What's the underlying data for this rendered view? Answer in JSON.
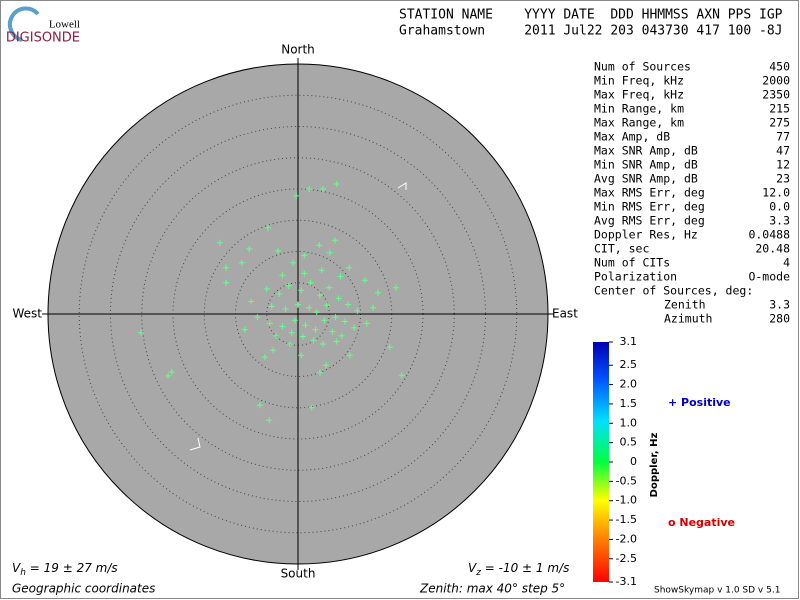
{
  "header": {
    "logo_top": "Lowell",
    "logo_main": "DIGISONDE",
    "line1": "STATION NAME    YYYY DATE  DDD HHMMSS AXN PPS IGP",
    "line2": "Grahamstown     2011 Jul22 203 043730 417 100 -8J"
  },
  "stats": {
    "rows": [
      [
        "Num of Sources",
        "450"
      ],
      [
        "Min Freq, kHz",
        "2000"
      ],
      [
        "Max Freq, kHz",
        "2350"
      ],
      [
        "Min Range, km",
        "215"
      ],
      [
        "Max Range, km",
        "275"
      ],
      [
        "Max Amp, dB",
        "77"
      ],
      [
        "Max SNR Amp, dB",
        "47"
      ],
      [
        "Min SNR Amp, dB",
        "12"
      ],
      [
        "Avg SNR Amp, dB",
        "23"
      ],
      [
        "Max RMS Err, deg",
        "12.0"
      ],
      [
        "Min RMS Err, deg",
        "0.0"
      ],
      [
        "Avg RMS Err, deg",
        "3.3"
      ],
      [
        "Doppler Res, Hz",
        "0.0488"
      ],
      [
        "CIT, sec",
        "20.48"
      ],
      [
        "Num of CITs",
        "4"
      ],
      [
        "Polarization",
        "O-mode"
      ]
    ],
    "center_title": "Center of Sources, deg:",
    "center_rows": [
      [
        "Zenith",
        "3.3"
      ],
      [
        "Azimuth",
        "280"
      ]
    ]
  },
  "chart_data": {
    "type": "polar-scatter",
    "directions": {
      "north": "North",
      "south": "South",
      "east": "East",
      "west": "West"
    },
    "xlim": [
      -40,
      40
    ],
    "ylim": [
      -40,
      40
    ],
    "rticks": [
      5,
      10,
      15,
      20,
      25,
      30,
      35
    ],
    "color": "#66ff88",
    "x": [
      -0.3,
      1.8,
      4.0,
      6.2,
      -12.5,
      -4.8,
      3.4,
      5.9,
      -11.5,
      -9.0,
      -7.8,
      -3.2,
      -0.8,
      1.0,
      5.1,
      8.2,
      10.7,
      12.8,
      15.7,
      -11.5,
      -25.1,
      -20.8,
      -20.2,
      -6.1,
      -4.6,
      2.2,
      3.5,
      4.5,
      8.3,
      14.7,
      16.6,
      -4.0,
      -5.3,
      0.5,
      -1.3,
      -5.0,
      -3.0,
      -1.5,
      0.5,
      2.0,
      3.5,
      5.0,
      6.5,
      8.0,
      9.5,
      -4.2,
      -2.0,
      0.0,
      1.8,
      3.0,
      4.6,
      6.0,
      7.5,
      -6.5,
      -4.5,
      -2.5,
      -0.5,
      1.2,
      2.8,
      4.2,
      5.5,
      7.0,
      9.0,
      11.0,
      -3.5,
      -1.0,
      0.8,
      2.5,
      4.0,
      6.2,
      -7.5,
      -8.5,
      1.0,
      3.8,
      6.8,
      -2.5,
      12.0
    ],
    "values": [
      18.9,
      20.0,
      20.0,
      20.8,
      11.4,
      13.8,
      11.0,
      11.8,
      7.4,
      8.2,
      10.4,
      10.1,
      8.2,
      9.4,
      9.8,
      7.4,
      5.4,
      3.4,
      4.2,
      5.0,
      -3.0,
      -9.9,
      -9.3,
      -14.6,
      -17.0,
      -15.0,
      -9.4,
      -8.2,
      -6.6,
      -5.3,
      -9.8,
      -5.8,
      -6.9,
      -6.6,
      -4.8,
      4.0,
      3.2,
      4.5,
      3.8,
      5.0,
      3.0,
      4.2,
      2.5,
      1.5,
      0.5,
      1.2,
      0.8,
      1.5,
      1.0,
      0.3,
      1.4,
      -0.5,
      -1.2,
      -0.5,
      -1.5,
      -2.0,
      -1.0,
      -1.8,
      -2.5,
      -1.0,
      -2.8,
      -3.5,
      -2.2,
      -1.5,
      -3.5,
      -3.0,
      -3.6,
      -4.2,
      -4.8,
      -4.4,
      2.0,
      -2.5,
      6.5,
      7.0,
      6.0,
      6.2,
      1.0
    ],
    "colorbar": {
      "label": "Doppler, Hz",
      "lim": [
        -3.1,
        3.1
      ],
      "ticks": [
        3.1,
        2.5,
        {
          "value": 2,
          "label": "2.0"
        },
        1.5,
        {
          "value": 1,
          "label": "1.0"
        },
        0.5,
        0,
        -0.5,
        {
          "value": -1,
          "label": "-1.0"
        },
        -1.5,
        {
          "value": -2,
          "label": "-2.0"
        },
        -2.5,
        -3.1
      ]
    },
    "legend": {
      "positive": "+ Positive",
      "negative": "o Negative"
    },
    "vh": {
      "symbol": "V",
      "sub": "h",
      "text": " = 19 ± 27 m/s"
    },
    "vz": {
      "symbol": "V",
      "sub": "z",
      "text": " = -10 ± 1 m/s"
    },
    "coords": "Geographic coordinates",
    "zenith_note": "Zenith: max 40°  step 5°",
    "credit": "ShowSkymap v 1.0   SD v 5.1"
  }
}
